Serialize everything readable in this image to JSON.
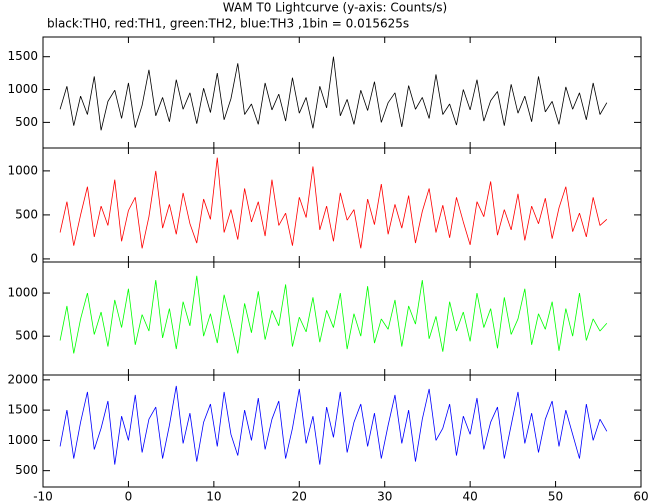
{
  "chart_data": [
    {
      "type": "line",
      "title": "WAM T0 Lightcurve (y-axis: Counts/s)",
      "subtitle": "black:TH0, red:TH1, green:TH2, blue:TH3 ,1bin = 0.015625s",
      "xlim": [
        -10,
        60
      ],
      "ylim": [
        110,
        1800
      ],
      "yticks": [
        500,
        1000,
        1500
      ],
      "x": [
        -8,
        -7.2,
        -6.4,
        -5.6,
        -4.8,
        -4,
        -3.2,
        -2.4,
        -1.6,
        -0.8,
        0,
        0.8,
        1.6,
        2.4,
        3.2,
        4,
        4.8,
        5.6,
        6.4,
        7.2,
        8,
        8.8,
        9.6,
        10.4,
        11.2,
        12,
        12.8,
        13.6,
        14.4,
        15.2,
        16,
        16.8,
        17.6,
        18.4,
        19.2,
        20,
        20.8,
        21.6,
        22.4,
        23.2,
        24,
        24.8,
        25.6,
        26.4,
        27.2,
        28,
        28.8,
        29.6,
        30.4,
        31.2,
        32,
        32.8,
        33.6,
        34.4,
        35.2,
        36,
        36.8,
        37.6,
        38.4,
        39.2,
        40,
        40.8,
        41.6,
        42.4,
        43.2,
        44,
        44.8,
        45.6,
        46.4,
        47.2,
        48,
        48.8,
        49.6,
        50.4,
        51.2,
        52,
        52.8,
        53.6,
        54.4,
        55.2,
        56
      ],
      "series": [
        {
          "name": "TH0",
          "color": "#000000",
          "values": [
            700,
            1050,
            450,
            900,
            620,
            1200,
            380,
            820,
            990,
            560,
            1100,
            420,
            760,
            1300,
            600,
            880,
            510,
            1150,
            700,
            950,
            480,
            1020,
            650,
            1250,
            540,
            860,
            1400,
            620,
            780,
            470,
            1100,
            690,
            930,
            520,
            1180,
            640,
            880,
            410,
            1050,
            720,
            1500,
            600,
            850,
            470,
            990,
            680,
            1120,
            500,
            800,
            950,
            430,
            1060,
            700,
            880,
            560,
            1230,
            620,
            780,
            460,
            1000,
            690,
            1150,
            520,
            830,
            970,
            450,
            1080,
            640,
            900,
            510,
            1200,
            660,
            820,
            470,
            1040,
            700,
            950,
            540,
            1100,
            620,
            800
          ]
        }
      ]
    },
    {
      "type": "line",
      "xlim": [
        -10,
        60
      ],
      "ylim": [
        -35,
        1260
      ],
      "yticks": [
        0,
        500,
        1000
      ],
      "x": [
        -8,
        -7.2,
        -6.4,
        -5.6,
        -4.8,
        -4,
        -3.2,
        -2.4,
        -1.6,
        -0.8,
        0,
        0.8,
        1.6,
        2.4,
        3.2,
        4,
        4.8,
        5.6,
        6.4,
        7.2,
        8,
        8.8,
        9.6,
        10.4,
        11.2,
        12,
        12.8,
        13.6,
        14.4,
        15.2,
        16,
        16.8,
        17.6,
        18.4,
        19.2,
        20,
        20.8,
        21.6,
        22.4,
        23.2,
        24,
        24.8,
        25.6,
        26.4,
        27.2,
        28,
        28.8,
        29.6,
        30.4,
        31.2,
        32,
        32.8,
        33.6,
        34.4,
        35.2,
        36,
        36.8,
        37.6,
        38.4,
        39.2,
        40,
        40.8,
        41.6,
        42.4,
        43.2,
        44,
        44.8,
        45.6,
        46.4,
        47.2,
        48,
        48.8,
        49.6,
        50.4,
        51.2,
        52,
        52.8,
        53.6,
        54.4,
        55.2,
        56
      ],
      "series": [
        {
          "name": "TH1",
          "color": "#ff0000",
          "values": [
            300,
            650,
            150,
            500,
            820,
            250,
            600,
            380,
            900,
            200,
            550,
            700,
            120,
            480,
            1000,
            350,
            620,
            280,
            750,
            400,
            180,
            680,
            450,
            1150,
            300,
            560,
            220,
            800,
            420,
            650,
            260,
            900,
            380,
            520,
            150,
            700,
            470,
            1050,
            330,
            600,
            200,
            750,
            440,
            560,
            120,
            680,
            390,
            850,
            280,
            620,
            350,
            720,
            180,
            540,
            800,
            300,
            610,
            240,
            700,
            420,
            160,
            650,
            480,
            880,
            270,
            560,
            330,
            740,
            210,
            600,
            400,
            690,
            230,
            580,
            820,
            310,
            520,
            250,
            700,
            380,
            450
          ]
        }
      ]
    },
    {
      "type": "line",
      "xlim": [
        -10,
        60
      ],
      "ylim": [
        50,
        1360
      ],
      "yticks": [
        500,
        1000
      ],
      "x": [
        -8,
        -7.2,
        -6.4,
        -5.6,
        -4.8,
        -4,
        -3.2,
        -2.4,
        -1.6,
        -0.8,
        0,
        0.8,
        1.6,
        2.4,
        3.2,
        4,
        4.8,
        5.6,
        6.4,
        7.2,
        8,
        8.8,
        9.6,
        10.4,
        11.2,
        12,
        12.8,
        13.6,
        14.4,
        15.2,
        16,
        16.8,
        17.6,
        18.4,
        19.2,
        20,
        20.8,
        21.6,
        22.4,
        23.2,
        24,
        24.8,
        25.6,
        26.4,
        27.2,
        28,
        28.8,
        29.6,
        30.4,
        31.2,
        32,
        32.8,
        33.6,
        34.4,
        35.2,
        36,
        36.8,
        37.6,
        38.4,
        39.2,
        40,
        40.8,
        41.6,
        42.4,
        43.2,
        44,
        44.8,
        45.6,
        46.4,
        47.2,
        48,
        48.8,
        49.6,
        50.4,
        51.2,
        52,
        52.8,
        53.6,
        54.4,
        55.2,
        56
      ],
      "series": [
        {
          "name": "TH2",
          "color": "#00ff00",
          "values": [
            450,
            850,
            300,
            700,
            1000,
            520,
            780,
            380,
            920,
            600,
            1050,
            400,
            750,
            560,
            1150,
            480,
            820,
            350,
            900,
            620,
            1200,
            500,
            760,
            420,
            980,
            650,
            300,
            880,
            540,
            1020,
            460,
            800,
            620,
            1100,
            380,
            720,
            550,
            950,
            430,
            800,
            600,
            1000,
            350,
            760,
            500,
            1080,
            420,
            700,
            580,
            920,
            380,
            850,
            640,
            1150,
            470,
            730,
            320,
            900,
            560,
            780,
            440,
            1000,
            600,
            820,
            360,
            950,
            520,
            700,
            1050,
            400,
            760,
            580,
            900,
            330,
            820,
            500,
            1000,
            450,
            700,
            560,
            650
          ]
        }
      ]
    },
    {
      "type": "line",
      "xlim": [
        -10,
        60
      ],
      "xticks": [
        -10,
        0,
        10,
        20,
        30,
        40,
        50,
        60
      ],
      "ylim": [
        230,
        2080
      ],
      "yticks": [
        500,
        1000,
        1500,
        2000
      ],
      "x": [
        -8,
        -7.2,
        -6.4,
        -5.6,
        -4.8,
        -4,
        -3.2,
        -2.4,
        -1.6,
        -0.8,
        0,
        0.8,
        1.6,
        2.4,
        3.2,
        4,
        4.8,
        5.6,
        6.4,
        7.2,
        8,
        8.8,
        9.6,
        10.4,
        11.2,
        12,
        12.8,
        13.6,
        14.4,
        15.2,
        16,
        16.8,
        17.6,
        18.4,
        19.2,
        20,
        20.8,
        21.6,
        22.4,
        23.2,
        24,
        24.8,
        25.6,
        26.4,
        27.2,
        28,
        28.8,
        29.6,
        30.4,
        31.2,
        32,
        32.8,
        33.6,
        34.4,
        35.2,
        36,
        36.8,
        37.6,
        38.4,
        39.2,
        40,
        40.8,
        41.6,
        42.4,
        43.2,
        44,
        44.8,
        45.6,
        46.4,
        47.2,
        48,
        48.8,
        49.6,
        50.4,
        51.2,
        52,
        52.8,
        53.6,
        54.4,
        55.2,
        56
      ],
      "series": [
        {
          "name": "TH3",
          "color": "#0000ff",
          "values": [
            900,
            1500,
            700,
            1300,
            1800,
            850,
            1200,
            1650,
            600,
            1400,
            1000,
            1750,
            800,
            1350,
            1550,
            700,
            1250,
            1900,
            950,
            1450,
            650,
            1300,
            1600,
            900,
            1800,
            1100,
            750,
            1500,
            1000,
            1700,
            850,
            1350,
            1650,
            700,
            1200,
            1850,
            950,
            1400,
            600,
            1550,
            1050,
            1800,
            800,
            1300,
            1600,
            900,
            1450,
            700,
            1250,
            1750,
            950,
            1500,
            650,
            1350,
            1850,
            1000,
            1200,
            1600,
            750,
            1400,
            1100,
            1700,
            850,
            1300,
            1550,
            700,
            1250,
            1800,
            950,
            1450,
            800,
            1350,
            1650,
            900,
            1500,
            1100,
            700,
            1600,
            1000,
            1350,
            1150
          ]
        }
      ]
    }
  ]
}
